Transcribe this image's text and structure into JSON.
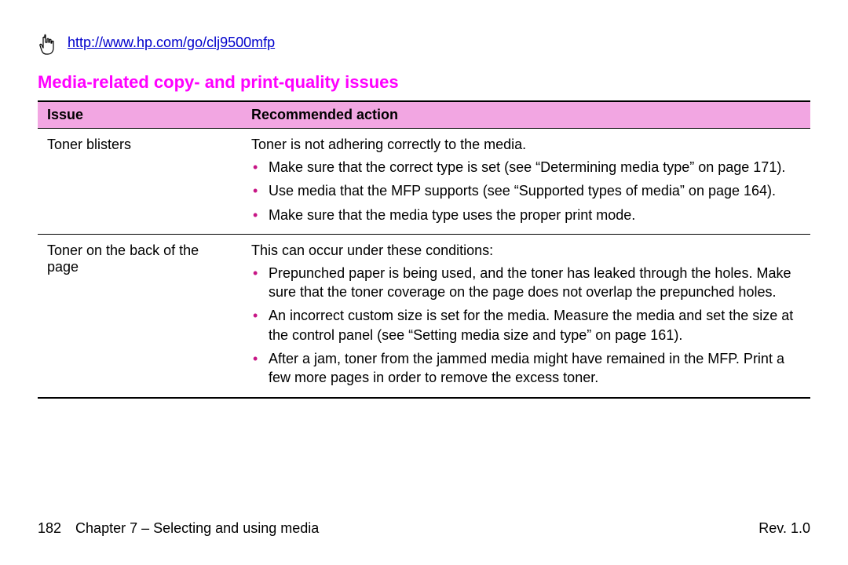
{
  "colors": {
    "link": "#0000cc",
    "section_title": "#ff00ff",
    "header_bg": "#f2a6e2",
    "bullet": "#c71585",
    "text": "#000000",
    "border": "#000000"
  },
  "header": {
    "url": "http://www.hp.com/go/clj9500mfp"
  },
  "section_title": "Media-related copy- and print-quality issues",
  "table": {
    "columns": {
      "issue": "Issue",
      "action": "Recommended action"
    },
    "rows": [
      {
        "issue": "Toner blisters",
        "intro": "Toner is not adhering correctly to the media.",
        "actions": [
          "Make sure that the correct type is set (see “Determining media type” on page 171).",
          "Use media that the MFP supports (see “Supported types of media” on page 164).",
          "Make sure that the media type uses the proper print mode."
        ]
      },
      {
        "issue": "Toner on the back of the page",
        "intro": "This can occur under these conditions:",
        "actions": [
          "Prepunched paper is being used, and the toner has leaked through the holes. Make sure that the toner coverage on the page does not overlap the prepunched holes.",
          "An incorrect custom size is set for the media. Measure the media and set the size at the control panel (see “Setting media size and type” on page 161).",
          "After a jam, toner from the jammed media might have remained in the MFP. Print a few more pages in order to remove the excess toner."
        ]
      }
    ]
  },
  "footer": {
    "page_number": "182",
    "chapter": "Chapter 7 – Selecting and using media",
    "revision": "Rev. 1.0"
  }
}
